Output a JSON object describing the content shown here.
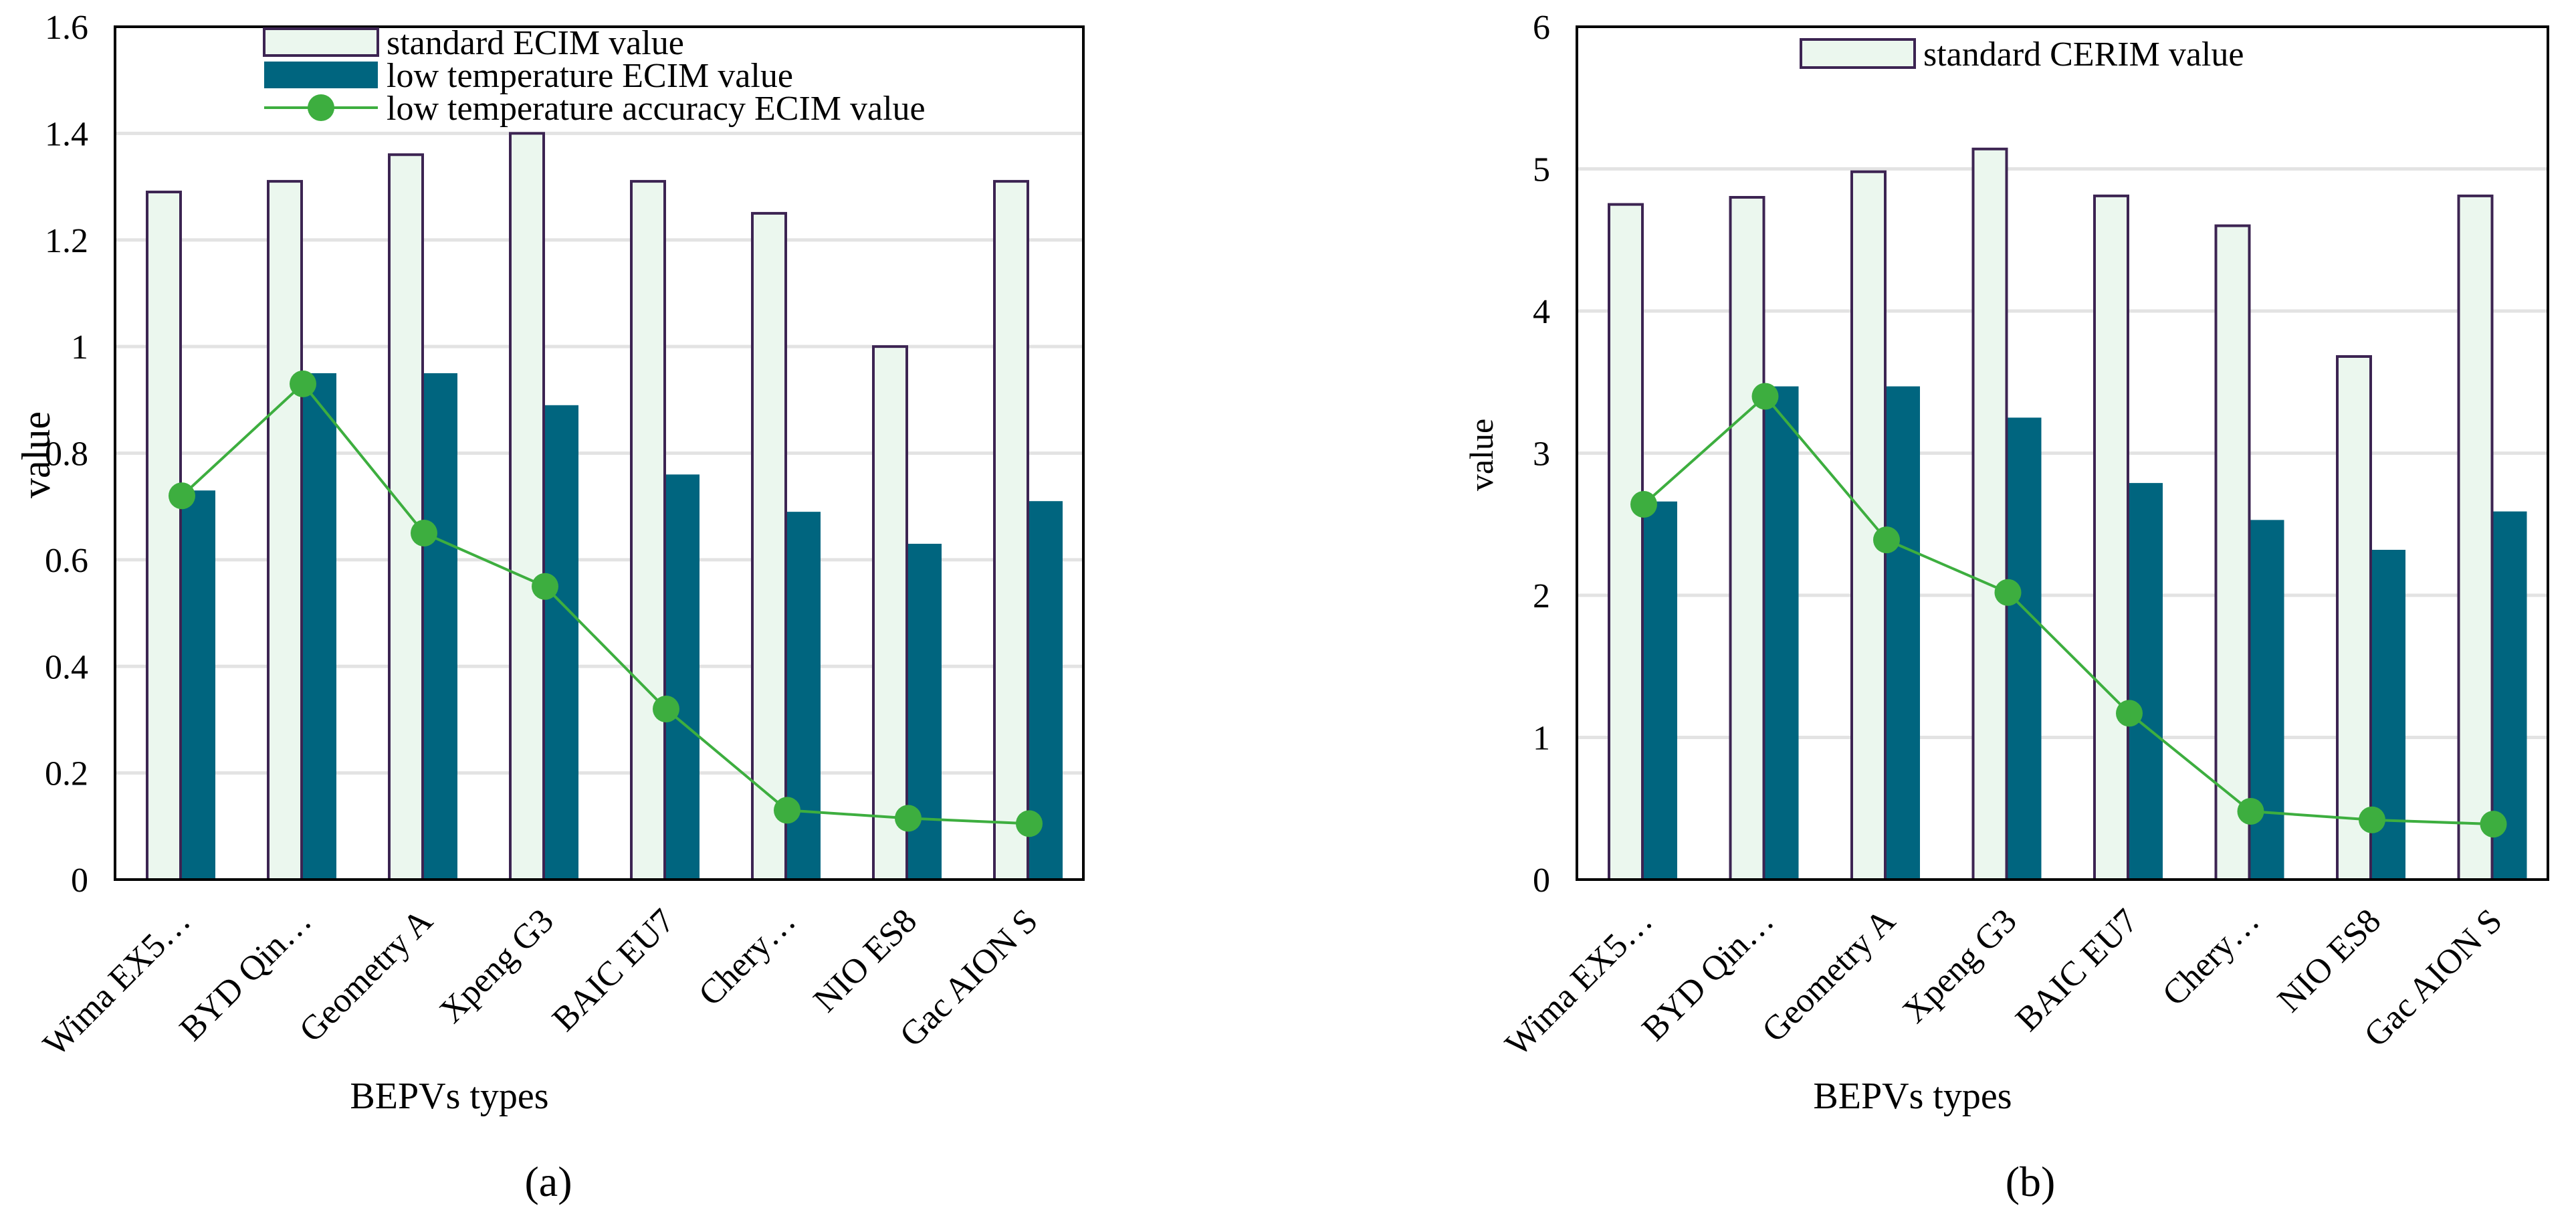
{
  "colors": {
    "standard_fill": "#EBF7EE",
    "standard_stroke": "#3C2452",
    "low_temp_fill": "#00657F",
    "accuracy_line": "#3DAE3F",
    "grid": "#E3E3E3",
    "axis": "#000000"
  },
  "chart_data": [
    {
      "id": "a",
      "type": "bar",
      "caption": "(a)",
      "xlabel": "BEPVs types",
      "ylabel": "value",
      "ylim": [
        0,
        1.6
      ],
      "yticks": [
        0,
        0.2,
        0.4,
        0.6,
        0.8,
        1,
        1.2,
        1.4,
        1.6
      ],
      "ytick_labels": [
        "0",
        "0.2",
        "0.4",
        "0.6",
        "0.8",
        "1",
        "1.2",
        "1.4",
        "1.6"
      ],
      "grid": true,
      "legend_position": "top",
      "categories": [
        "Wima EX5…",
        "BYD Qin…",
        "Geometry A",
        "Xpeng G3",
        "BAIC  EU7",
        "Chery…",
        "NIO ES8",
        "Gac AION S"
      ],
      "series": [
        {
          "name": "standard ECIM value",
          "kind": "bar",
          "values": [
            1.29,
            1.31,
            1.36,
            1.4,
            1.31,
            1.25,
            1.0,
            1.31
          ]
        },
        {
          "name": "low temperature ECIM value",
          "kind": "bar",
          "values": [
            0.73,
            0.95,
            0.95,
            0.89,
            0.76,
            0.69,
            0.63,
            0.71
          ]
        },
        {
          "name": "low temperature accuracy ECIM value",
          "kind": "line",
          "values": [
            0.72,
            0.93,
            0.65,
            0.55,
            0.32,
            0.13,
            0.115,
            0.105
          ]
        }
      ]
    },
    {
      "id": "b",
      "type": "bar",
      "caption": "(b)",
      "xlabel": "BEPVs types",
      "ylabel": "value",
      "ylim": [
        0,
        6
      ],
      "yticks": [
        0,
        1,
        2,
        3,
        4,
        5,
        6
      ],
      "ytick_labels": [
        "0",
        "1",
        "2",
        "3",
        "4",
        "5",
        "6"
      ],
      "grid": true,
      "legend_position": "top",
      "categories": [
        "Wima EX5…",
        "BYD Qin…",
        "Geometry A",
        "Xpeng G3",
        "BAIC  EU7",
        "Chery…",
        "NIO ES8",
        "Gac AION S"
      ],
      "series": [
        {
          "name": "standard CERIM value",
          "kind": "bar",
          "values": [
            4.75,
            4.8,
            4.98,
            5.14,
            4.81,
            4.6,
            3.68,
            4.81
          ]
        },
        {
          "name": "",
          "kind": "bar",
          "values": [
            2.66,
            3.47,
            3.47,
            3.25,
            2.79,
            2.53,
            2.32,
            2.59
          ]
        },
        {
          "name": "",
          "kind": "line",
          "values": [
            2.64,
            3.4,
            2.39,
            2.02,
            1.17,
            0.48,
            0.42,
            0.39
          ]
        }
      ]
    }
  ]
}
